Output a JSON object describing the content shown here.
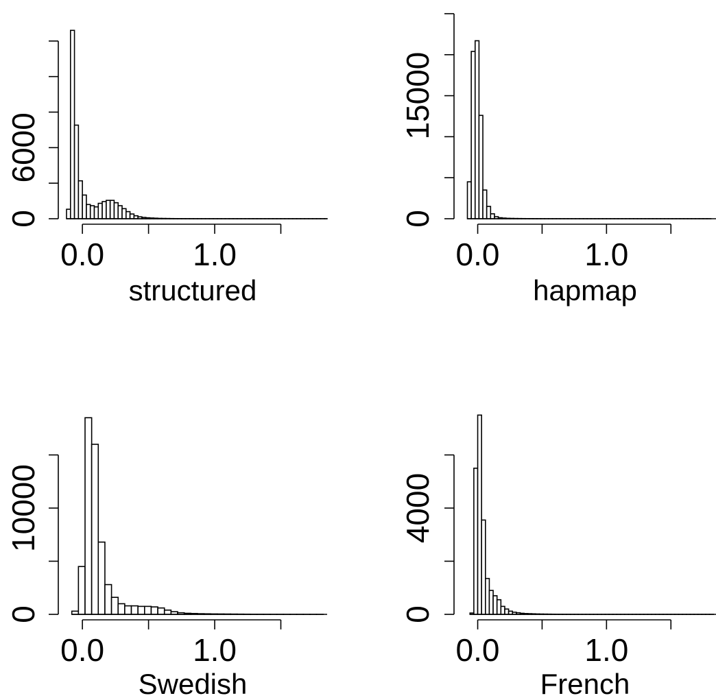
{
  "chart_data": [
    {
      "type": "bar",
      "subtype": "histogram",
      "xlabel": "structured",
      "bin_start": -0.12,
      "bin_width": 0.03,
      "values": [
        800,
        15900,
        7900,
        3200,
        2000,
        1200,
        1100,
        1000,
        1300,
        1450,
        1550,
        1550,
        1350,
        1100,
        850,
        600,
        400,
        250,
        160,
        110,
        80,
        60,
        45,
        30,
        25,
        20,
        15,
        12,
        10,
        8,
        6,
        5,
        4,
        4,
        3,
        3,
        2,
        2,
        2,
        1,
        1,
        1,
        1,
        1,
        1,
        1,
        1,
        1,
        1,
        1,
        1,
        1,
        1,
        1,
        1,
        1,
        1,
        1,
        1,
        1,
        1,
        1,
        1,
        1,
        1,
        1
      ],
      "xlim": [
        -0.12,
        1.85
      ],
      "ylim": [
        0,
        18000
      ],
      "x_ticks": [
        0.0,
        0.5,
        1.0,
        1.5
      ],
      "x_tick_labels": [
        "0.0",
        "1.0"
      ],
      "y_ticks": [
        0,
        3000,
        6000,
        9000,
        12000,
        15000
      ],
      "y_tick_labels": [
        "0",
        "6000"
      ]
    },
    {
      "type": "bar",
      "subtype": "histogram",
      "xlabel": "hapmap",
      "bin_start": -0.08,
      "bin_width": 0.03,
      "values": [
        4500,
        20400,
        21700,
        12600,
        3500,
        1500,
        600,
        250,
        120,
        80,
        50,
        40,
        30,
        25,
        20,
        15,
        12,
        10,
        8,
        6,
        5,
        4,
        3,
        3,
        2,
        2,
        2,
        1,
        1,
        1,
        1,
        1,
        1,
        1,
        1,
        1,
        1,
        1,
        1,
        1,
        1,
        1,
        1,
        1,
        1,
        1,
        1,
        1,
        1,
        1,
        1,
        1,
        1,
        1,
        1,
        1,
        1,
        1,
        1,
        1,
        1,
        1,
        1
      ],
      "xlim": [
        -0.12,
        1.85
      ],
      "ylim": [
        0,
        26000
      ],
      "x_ticks": [
        0.0,
        0.5,
        1.0,
        1.5
      ],
      "x_tick_labels": [
        "0.0",
        "1.0"
      ],
      "y_ticks": [
        0,
        5000,
        10000,
        15000,
        20000,
        25000
      ],
      "y_tick_labels": [
        "0",
        "15000"
      ]
    },
    {
      "type": "bar",
      "subtype": "histogram",
      "xlabel": "Swedish",
      "bin_start": -0.08,
      "bin_width": 0.05,
      "values": [
        300,
        4500,
        18500,
        16000,
        6800,
        2800,
        1600,
        1000,
        800,
        800,
        750,
        750,
        700,
        600,
        400,
        250,
        150,
        100,
        80,
        60,
        50,
        40,
        35,
        30,
        25,
        20,
        15,
        12,
        10,
        8,
        6,
        5,
        4,
        3,
        3,
        2,
        2,
        1
      ],
      "xlim": [
        -0.12,
        1.85
      ],
      "ylim": [
        0,
        20000
      ],
      "x_ticks": [
        0.0,
        0.5,
        1.0,
        1.5
      ],
      "x_tick_labels": [
        "0.0",
        "1.0"
      ],
      "y_ticks": [
        0,
        5000,
        10000,
        15000
      ],
      "y_tick_labels": [
        "0",
        "10000"
      ]
    },
    {
      "type": "bar",
      "subtype": "histogram",
      "xlabel": "French",
      "bin_start": -0.06,
      "bin_width": 0.03,
      "values": [
        50,
        5500,
        7500,
        3550,
        1350,
        900,
        700,
        550,
        300,
        200,
        120,
        80,
        60,
        40,
        30,
        25,
        20,
        15,
        12,
        10,
        8,
        6,
        5,
        4,
        3,
        3,
        2,
        2,
        1,
        1,
        1,
        1,
        1,
        1,
        1,
        1,
        1,
        1,
        1,
        1,
        1,
        1,
        1,
        1,
        1,
        1,
        1,
        1,
        1,
        1,
        1,
        1,
        1,
        1,
        1,
        1,
        1,
        1,
        1,
        1,
        1,
        1,
        1
      ],
      "xlim": [
        -0.12,
        1.85
      ],
      "ylim": [
        0,
        8000
      ],
      "x_ticks": [
        0.0,
        0.5,
        1.0,
        1.5
      ],
      "x_tick_labels": [
        "0.0",
        "1.0"
      ],
      "y_ticks": [
        0,
        2000,
        4000,
        6000
      ],
      "y_tick_labels": [
        "0",
        "4000"
      ]
    }
  ]
}
